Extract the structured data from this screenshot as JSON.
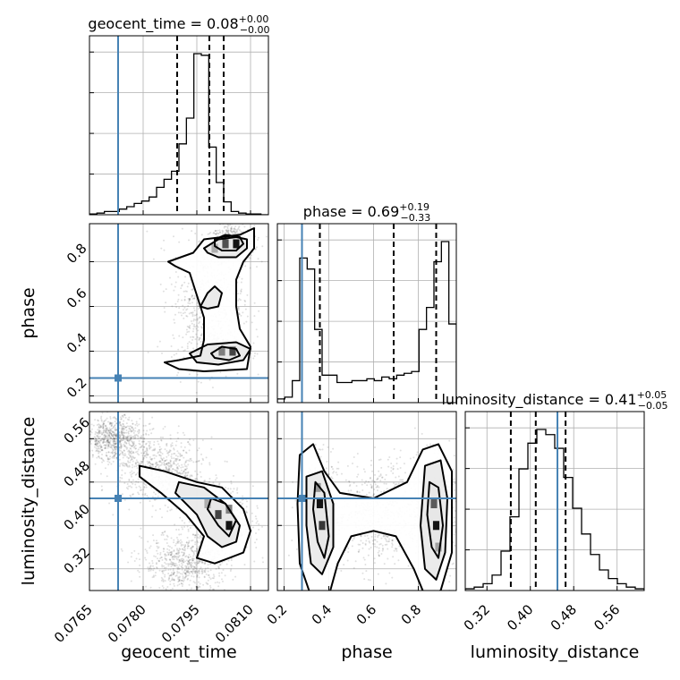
{
  "chart_data": {
    "type": "corner",
    "truth_color": "#4682b4",
    "contour_color": "#000000",
    "parameters": [
      {
        "name": "geocent_time",
        "label": "geocent_time",
        "title_prefix": "geocent_time = ",
        "title_value": "0.08",
        "title_plus": "+0.00",
        "title_minus": "−0.00",
        "range": [
          0.0765,
          0.0815
        ],
        "ticks": [
          0.0765,
          0.078,
          0.0795,
          0.081
        ],
        "tick_labels": [
          "0.0765",
          "0.0780",
          "0.0795",
          "0.0810"
        ],
        "truth": 0.0773,
        "quantiles": [
          0.07895,
          0.07985,
          0.08025
        ],
        "hist_bins": [
          0.0765,
          0.0815
        ],
        "hist_counts": [
          0.5,
          1,
          2,
          2,
          3.5,
          5,
          7,
          8.5,
          11,
          17,
          22,
          27,
          44,
          60,
          100,
          99,
          42,
          20,
          8,
          2,
          1,
          0.5,
          0.5,
          0
        ]
      },
      {
        "name": "phase",
        "label": "phase",
        "title_prefix": "phase = ",
        "title_value": "0.69",
        "title_plus": "+0.19",
        "title_minus": "−0.33",
        "range": [
          0.17,
          0.97
        ],
        "ticks": [
          0.2,
          0.4,
          0.6,
          0.8
        ],
        "tick_labels": [
          "0.2",
          "0.4",
          "0.6",
          "0.8"
        ],
        "truth": 0.28,
        "quantiles": [
          0.36,
          0.69,
          0.88
        ],
        "hist_bins": [
          0.17,
          0.97
        ],
        "hist_counts": [
          2,
          3,
          12,
          79,
          73,
          40,
          15,
          15,
          11,
          11,
          12,
          12,
          13,
          12,
          14,
          13,
          15,
          16,
          17,
          40,
          52,
          77,
          88,
          43
        ]
      },
      {
        "name": "luminosity_distance",
        "label": "luminosity_distance",
        "title_prefix": "luminosity_distance = ",
        "title_value": "0.41",
        "title_plus": "+0.05",
        "title_minus": "−0.05",
        "range": [
          0.28,
          0.61
        ],
        "ticks": [
          0.32,
          0.4,
          0.48,
          0.56
        ],
        "tick_labels": [
          "0.32",
          "0.40",
          "0.48",
          "0.56"
        ],
        "truth": 0.45,
        "quantiles": [
          0.364,
          0.41,
          0.465
        ],
        "hist_bins": [
          0.28,
          0.61
        ],
        "hist_counts": [
          1,
          2,
          4,
          9,
          23,
          43,
          71,
          86,
          94,
          91,
          83,
          66,
          48,
          33,
          21,
          12,
          7,
          4,
          2,
          1
        ]
      }
    ],
    "scatter_2d": [
      {
        "x": "geocent_time",
        "y": "phase",
        "blobs": [
          {
            "x": 0.0805,
            "y": 0.88,
            "sx": 0.0003,
            "sy": 0.04
          },
          {
            "x": 0.0803,
            "y": 0.4,
            "sx": 0.0003,
            "sy": 0.03
          },
          {
            "x": 0.0798,
            "y": 0.62,
            "sx": 0.0005,
            "sy": 0.15
          }
        ]
      },
      {
        "x": "geocent_time",
        "y": "luminosity_distance",
        "blobs": [
          {
            "x": 0.0802,
            "y": 0.41,
            "sx": 0.0004,
            "sy": 0.03
          },
          {
            "x": 0.0785,
            "y": 0.5,
            "sx": 0.0006,
            "sy": 0.03
          },
          {
            "x": 0.0772,
            "y": 0.56,
            "sx": 0.0004,
            "sy": 0.02
          },
          {
            "x": 0.0792,
            "y": 0.33,
            "sx": 0.0006,
            "sy": 0.03
          }
        ]
      },
      {
        "x": "phase",
        "y": "luminosity_distance",
        "blobs": [
          {
            "x": 0.36,
            "y": 0.42,
            "sx": 0.04,
            "sy": 0.05
          },
          {
            "x": 0.88,
            "y": 0.42,
            "sx": 0.04,
            "sy": 0.05
          },
          {
            "x": 0.62,
            "y": 0.42,
            "sx": 0.12,
            "sy": 0.05
          }
        ]
      }
    ],
    "contours": [
      {
        "x": "geocent_time",
        "y": "phase",
        "levels": [
          [
            [
              0.0796,
              0.6
            ],
            [
              0.0798,
              0.66
            ],
            [
              0.08,
              0.69
            ],
            [
              0.0802,
              0.66
            ],
            [
              0.0801,
              0.6
            ],
            [
              0.0798,
              0.59
            ]
          ],
          [
            [
              0.08,
              0.9
            ],
            [
              0.0803,
              0.92
            ],
            [
              0.0807,
              0.91
            ],
            [
              0.0808,
              0.88
            ],
            [
              0.0806,
              0.85
            ],
            [
              0.0802,
              0.85
            ],
            [
              0.08,
              0.87
            ]
          ],
          [
            [
              0.0799,
              0.39
            ],
            [
              0.0802,
              0.42
            ],
            [
              0.0806,
              0.41
            ],
            [
              0.0807,
              0.38
            ],
            [
              0.0804,
              0.36
            ],
            [
              0.08,
              0.37
            ]
          ],
          [
            [
              0.0797,
              0.86
            ],
            [
              0.0801,
              0.9
            ],
            [
              0.0806,
              0.91
            ],
            [
              0.0809,
              0.9
            ],
            [
              0.0809,
              0.86
            ],
            [
              0.0806,
              0.82
            ],
            [
              0.0801,
              0.82
            ],
            [
              0.0798,
              0.84
            ]
          ],
          [
            [
              0.0793,
              0.39
            ],
            [
              0.0798,
              0.43
            ],
            [
              0.0806,
              0.44
            ],
            [
              0.081,
              0.41
            ],
            [
              0.0808,
              0.36
            ],
            [
              0.0801,
              0.34
            ],
            [
              0.0795,
              0.35
            ]
          ],
          [
            [
              0.0787,
              0.8
            ],
            [
              0.0794,
              0.84
            ],
            [
              0.0797,
              0.9
            ],
            [
              0.0807,
              0.92
            ],
            [
              0.0811,
              0.95
            ],
            [
              0.0811,
              0.86
            ],
            [
              0.0808,
              0.8
            ],
            [
              0.0806,
              0.72
            ],
            [
              0.0806,
              0.6
            ],
            [
              0.0807,
              0.5
            ],
            [
              0.081,
              0.42
            ],
            [
              0.0809,
              0.32
            ],
            [
              0.0797,
              0.31
            ],
            [
              0.079,
              0.32
            ],
            [
              0.0786,
              0.35
            ],
            [
              0.079,
              0.36
            ],
            [
              0.0796,
              0.38
            ],
            [
              0.0797,
              0.45
            ],
            [
              0.0797,
              0.55
            ],
            [
              0.0795,
              0.65
            ],
            [
              0.0793,
              0.75
            ],
            [
              0.0789,
              0.78
            ]
          ]
        ]
      },
      {
        "x": "geocent_time",
        "y": "luminosity_distance",
        "levels": [
          [
            [
              0.0799,
              0.45
            ],
            [
              0.0803,
              0.44
            ],
            [
              0.0806,
              0.41
            ],
            [
              0.0804,
              0.38
            ],
            [
              0.0801,
              0.4
            ],
            [
              0.0798,
              0.43
            ]
          ],
          [
            [
              0.079,
              0.48
            ],
            [
              0.0797,
              0.47
            ],
            [
              0.0803,
              0.44
            ],
            [
              0.0807,
              0.4
            ],
            [
              0.0806,
              0.37
            ],
            [
              0.0802,
              0.36
            ],
            [
              0.0798,
              0.38
            ],
            [
              0.0795,
              0.42
            ],
            [
              0.0789,
              0.46
            ]
          ],
          [
            [
              0.0779,
              0.51
            ],
            [
              0.0786,
              0.5
            ],
            [
              0.0795,
              0.48
            ],
            [
              0.0802,
              0.47
            ],
            [
              0.0808,
              0.43
            ],
            [
              0.081,
              0.39
            ],
            [
              0.0808,
              0.35
            ],
            [
              0.08,
              0.33
            ],
            [
              0.0795,
              0.34
            ],
            [
              0.0797,
              0.38
            ],
            [
              0.0792,
              0.42
            ],
            [
              0.0785,
              0.46
            ],
            [
              0.0779,
              0.49
            ]
          ]
        ]
      },
      {
        "x": "phase",
        "y": "luminosity_distance",
        "levels": [
          [
            [
              0.34,
              0.48
            ],
            [
              0.38,
              0.46
            ],
            [
              0.4,
              0.38
            ],
            [
              0.38,
              0.34
            ],
            [
              0.35,
              0.37
            ],
            [
              0.33,
              0.43
            ]
          ],
          [
            [
              0.85,
              0.48
            ],
            [
              0.89,
              0.47
            ],
            [
              0.91,
              0.4
            ],
            [
              0.89,
              0.34
            ],
            [
              0.86,
              0.36
            ],
            [
              0.84,
              0.42
            ]
          ],
          [
            [
              0.3,
              0.49
            ],
            [
              0.37,
              0.5
            ],
            [
              0.42,
              0.44
            ],
            [
              0.42,
              0.36
            ],
            [
              0.37,
              0.31
            ],
            [
              0.32,
              0.33
            ],
            [
              0.3,
              0.4
            ]
          ],
          [
            [
              0.83,
              0.51
            ],
            [
              0.9,
              0.52
            ],
            [
              0.93,
              0.45
            ],
            [
              0.92,
              0.35
            ],
            [
              0.88,
              0.3
            ],
            [
              0.83,
              0.32
            ],
            [
              0.81,
              0.4
            ]
          ],
          [
            [
              0.27,
              0.53
            ],
            [
              0.33,
              0.55
            ],
            [
              0.38,
              0.5
            ],
            [
              0.45,
              0.46
            ],
            [
              0.6,
              0.45
            ],
            [
              0.75,
              0.48
            ],
            [
              0.82,
              0.54
            ],
            [
              0.89,
              0.55
            ],
            [
              0.95,
              0.5
            ],
            [
              0.95,
              0.35
            ],
            [
              0.9,
              0.28
            ],
            [
              0.83,
              0.27
            ],
            [
              0.78,
              0.32
            ],
            [
              0.7,
              0.38
            ],
            [
              0.6,
              0.39
            ],
            [
              0.5,
              0.38
            ],
            [
              0.44,
              0.33
            ],
            [
              0.4,
              0.27
            ],
            [
              0.32,
              0.27
            ],
            [
              0.27,
              0.33
            ],
            [
              0.26,
              0.44
            ]
          ]
        ]
      }
    ],
    "heat_2d": [
      {
        "x": "geocent_time",
        "y": "phase",
        "cells": [
          {
            "x": 0.0806,
            "y": 0.88,
            "v": 1.0
          },
          {
            "x": 0.0803,
            "y": 0.88,
            "v": 0.75
          },
          {
            "x": 0.0805,
            "y": 0.4,
            "v": 0.8
          },
          {
            "x": 0.0802,
            "y": 0.4,
            "v": 0.55
          },
          {
            "x": 0.08,
            "y": 0.86,
            "v": 0.35
          }
        ]
      },
      {
        "x": "geocent_time",
        "y": "luminosity_distance",
        "cells": [
          {
            "x": 0.0804,
            "y": 0.4,
            "v": 1.0
          },
          {
            "x": 0.0801,
            "y": 0.42,
            "v": 0.8
          },
          {
            "x": 0.0804,
            "y": 0.43,
            "v": 0.55
          },
          {
            "x": 0.0798,
            "y": 0.44,
            "v": 0.35
          }
        ]
      },
      {
        "x": "phase",
        "y": "luminosity_distance",
        "cells": [
          {
            "x": 0.36,
            "y": 0.44,
            "v": 1.0
          },
          {
            "x": 0.37,
            "y": 0.4,
            "v": 0.85
          },
          {
            "x": 0.88,
            "y": 0.4,
            "v": 1.0
          },
          {
            "x": 0.87,
            "y": 0.44,
            "v": 0.7
          },
          {
            "x": 0.35,
            "y": 0.47,
            "v": 0.45
          },
          {
            "x": 0.89,
            "y": 0.36,
            "v": 0.4
          }
        ]
      }
    ]
  }
}
